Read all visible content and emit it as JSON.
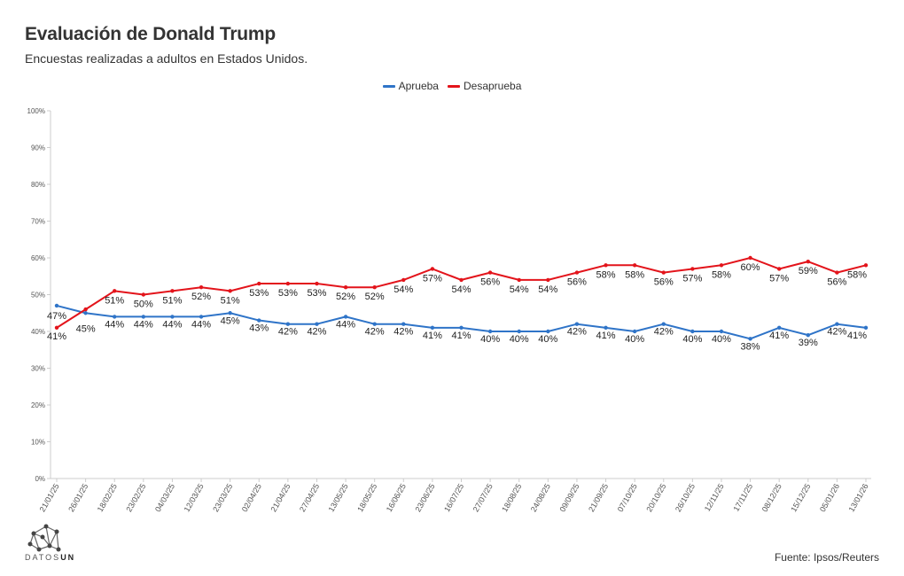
{
  "header": {
    "title": "Evaluación de Donald Trump",
    "subtitle": "Encuestas realizadas a adultos en Estados Unidos."
  },
  "footer": {
    "logo_prefix": "DATOS",
    "logo_suffix": "UN",
    "source": "Fuente: Ipsos/Reuters"
  },
  "colors": {
    "aprueba": "#2f74c8",
    "desaprueba": "#e3141b",
    "axis": "#cccccc",
    "text": "#333333"
  },
  "chart_data": {
    "type": "line",
    "title": "Evaluación de Donald Trump",
    "subtitle": "Encuestas realizadas a adultos en Estados Unidos.",
    "xlabel": "",
    "ylabel": "",
    "ylim": [
      0,
      100
    ],
    "yticks": [
      "0%",
      "10%",
      "20%",
      "30%",
      "40%",
      "50%",
      "60%",
      "70%",
      "80%",
      "90%",
      "100%"
    ],
    "legend_position": "top-center",
    "grid": false,
    "categories": [
      "21/01/25",
      "26/01/25",
      "18/02/25",
      "23/02/25",
      "04/03/25",
      "12/03/25",
      "23/03/25",
      "02/04/25",
      "21/04/25",
      "27/04/25",
      "13/05/25",
      "18/05/25",
      "16/06/25",
      "23/06/25",
      "16/07/25",
      "27/07/25",
      "18/08/25",
      "24/08/25",
      "09/09/25",
      "21/09/25",
      "07/10/25",
      "20/10/25",
      "26/10/25",
      "12/11/25",
      "17/11/25",
      "08/12/25",
      "15/12/25",
      "05/01/26",
      "13/01/26"
    ],
    "series": [
      {
        "name": "Aprueba",
        "color": "#2f74c8",
        "values": [
          47,
          45,
          44,
          44,
          44,
          44,
          45,
          43,
          42,
          42,
          44,
          42,
          42,
          41,
          41,
          40,
          40,
          40,
          42,
          41,
          40,
          42,
          40,
          40,
          38,
          41,
          39,
          42,
          41
        ],
        "labels": [
          "47%",
          "45%",
          "44%",
          "44%",
          "44%",
          "44%",
          "45%",
          "43%",
          "42%",
          "42%",
          "44%",
          "42%",
          "42%",
          "41%",
          "41%",
          "40%",
          "40%",
          "40%",
          "42%",
          "41%",
          "40%",
          "42%",
          "40%",
          "40%",
          "38%",
          "41%",
          "39%",
          "42%",
          "41%"
        ]
      },
      {
        "name": "Desaprueba",
        "color": "#e3141b",
        "values": [
          41,
          46,
          51,
          50,
          51,
          52,
          51,
          53,
          53,
          53,
          52,
          52,
          54,
          57,
          54,
          56,
          54,
          54,
          56,
          58,
          58,
          56,
          57,
          58,
          60,
          57,
          59,
          56,
          58
        ],
        "labels": [
          "41%",
          null,
          "51%",
          "50%",
          "51%",
          "52%",
          "51%",
          "53%",
          "53%",
          "53%",
          "52%",
          "52%",
          "54%",
          "57%",
          "54%",
          "56%",
          "54%",
          "54%",
          "56%",
          "58%",
          "58%",
          "56%",
          "57%",
          "58%",
          "60%",
          "57%",
          "59%",
          "56%",
          "58%"
        ]
      }
    ]
  }
}
